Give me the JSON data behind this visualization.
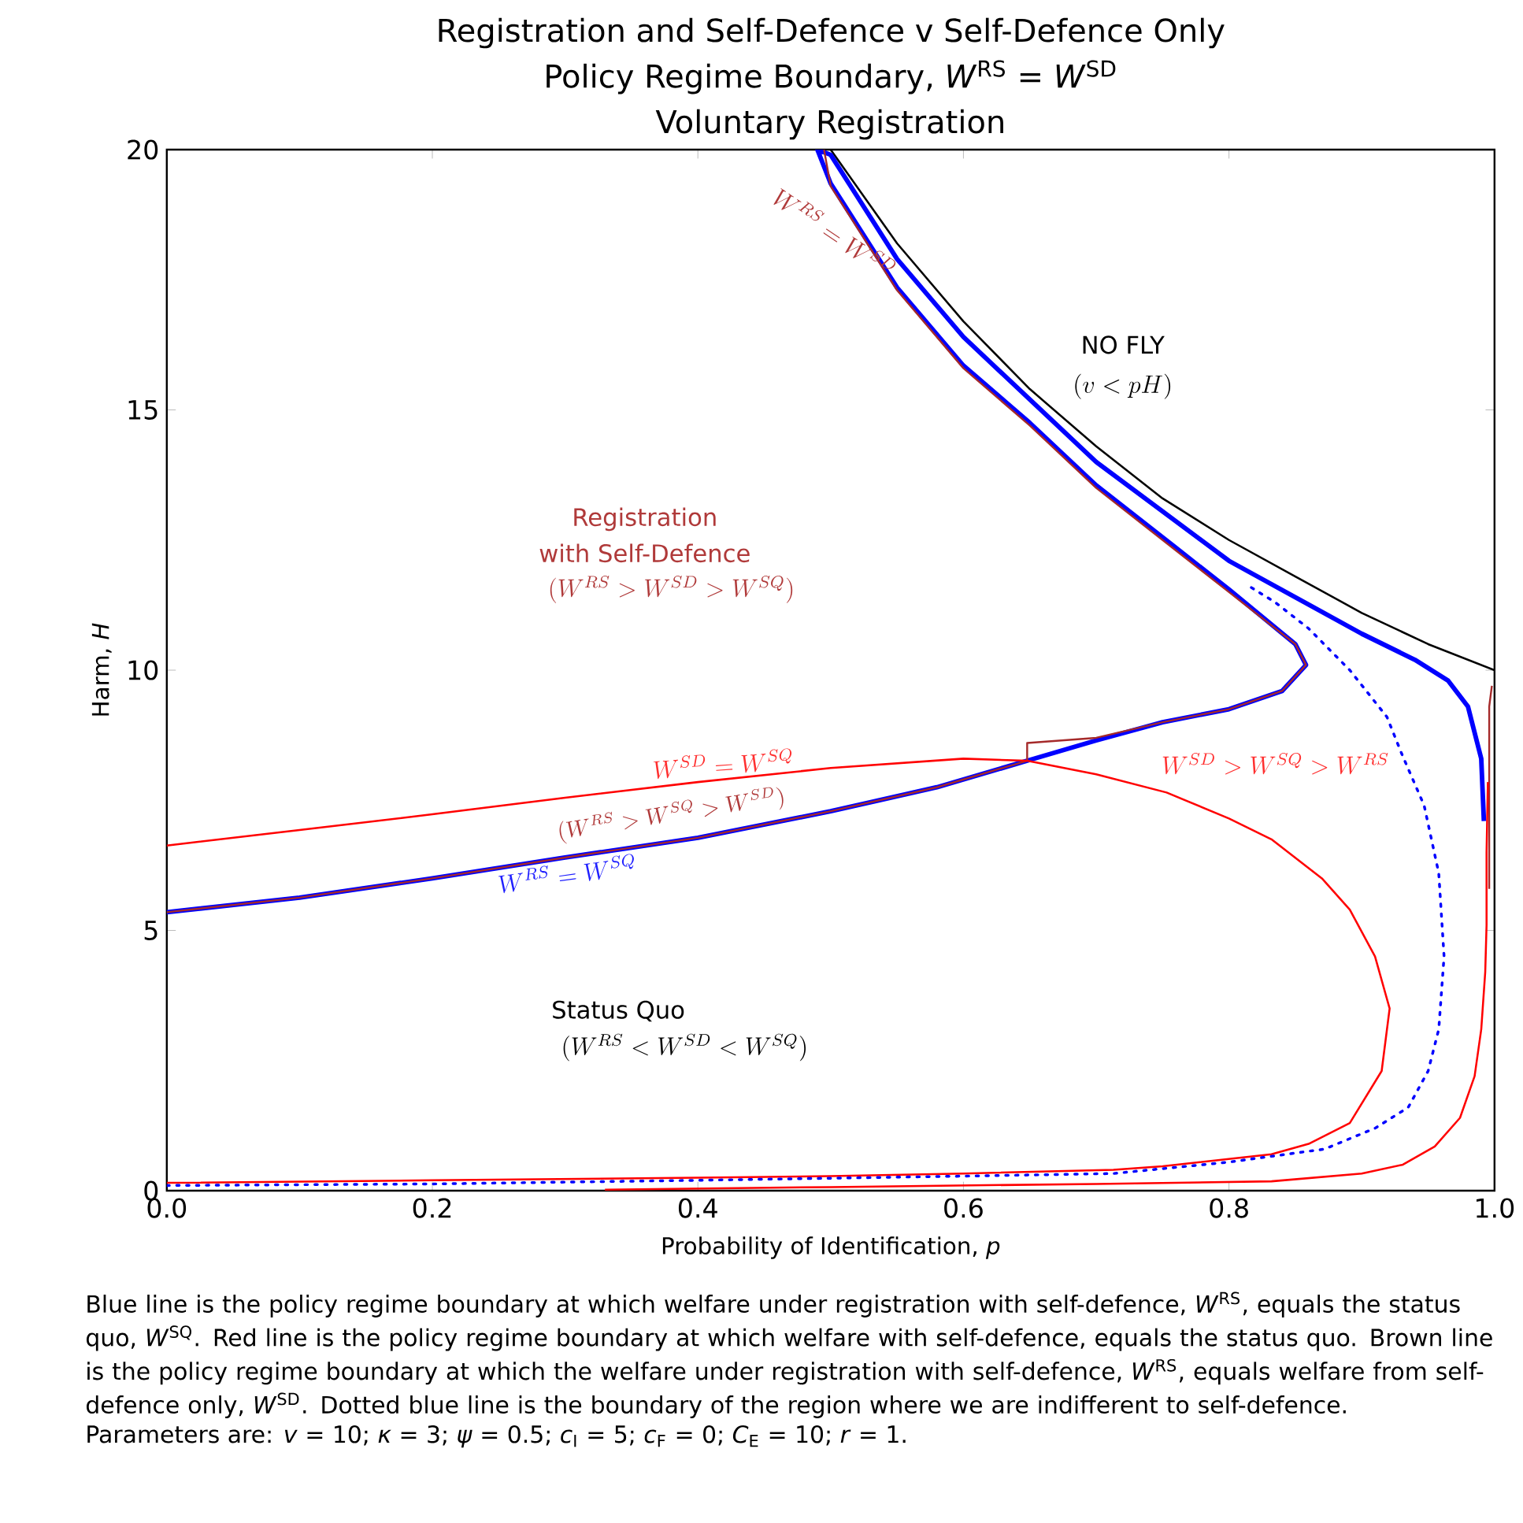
{
  "chart_data": {
    "type": "line",
    "title": "Registration and Self-Defence v Self-Defence Only",
    "subtitle": "Policy Regime Boundary, *W*$^{RS}$ = *W*$^{SD}$",
    "xlabel": "Probability of Identification, *p*",
    "ylabel": "Harm, *H*",
    "xlim": [
      0,
      1
    ],
    "ylim": [
      0,
      20
    ],
    "xticks": [
      {
        "value": 0,
        "label": "0.0"
      },
      {
        "value": 0.2,
        "label": "0.2"
      },
      {
        "value": 0.4,
        "label": "0.4"
      },
      {
        "value": 0.6,
        "label": "0.6"
      },
      {
        "value": 0.8,
        "label": "0.8"
      },
      {
        "value": 1,
        "label": "1.0"
      }
    ],
    "yticks": [
      0,
      5,
      10,
      15,
      20
    ],
    "marker": "none",
    "series": [
      {
        "color": "#000000",
        "line_style": "solid",
        "x": [
          0.5,
          0.55,
          0.6,
          0.65,
          0.7,
          0.75,
          0.8,
          0.85,
          0.9,
          0.95,
          1.0
        ],
        "values": [
          20,
          18.2,
          16.7,
          15.4,
          14.3,
          13.3,
          12.5,
          11.8,
          11.1,
          10.5,
          10
        ]
      },
      {
        "color": "#0000ff",
        "line_style": "solid",
        "x": [
          0,
          0.1,
          0.2,
          0.3,
          0.4,
          0.5,
          0.58,
          0.648,
          0.7,
          0.75,
          0.8,
          0.84,
          0.858,
          0.85,
          0.8,
          0.76,
          0.7,
          0.65,
          0.6,
          0.55,
          0.5,
          0.49,
          0.5,
          0.55,
          0.6,
          0.7,
          0.8,
          0.9,
          0.94,
          0.965,
          0.98,
          0.99,
          0.992
        ],
        "values": [
          5.35,
          5.63,
          6.0,
          6.4,
          6.78,
          7.29,
          7.75,
          8.26,
          8.65,
          9.0,
          9.25,
          9.6,
          10.1,
          10.5,
          11.55,
          12.35,
          13.55,
          14.75,
          15.85,
          17.35,
          19.35,
          20,
          19.9,
          17.9,
          16.4,
          14.0,
          12.1,
          10.7,
          10.2,
          9.8,
          9.3,
          8.3,
          7.1
        ]
      },
      {
        "color": "#a52a2a",
        "line_style": "solid",
        "x": [
          0,
          0.1,
          0.2,
          0.3,
          0.4,
          0.5,
          0.58,
          0.648,
          0.648,
          0.7,
          0.75,
          0.8,
          0.84,
          0.858,
          0.85,
          0.8,
          0.76,
          0.7,
          0.65,
          0.6,
          0.55,
          0.5,
          0.495,
          null,
          0.998,
          0.996,
          0.996
        ],
        "values": [
          5.35,
          5.63,
          6.0,
          6.4,
          6.78,
          7.29,
          7.75,
          8.26,
          8.6,
          8.7,
          9.0,
          9.25,
          9.6,
          10.1,
          10.5,
          11.5,
          12.3,
          13.5,
          14.7,
          15.8,
          17.3,
          19.3,
          20,
          null,
          9.7,
          9.3,
          5.8
        ]
      },
      {
        "color": "#ff0000",
        "line_style": "solid",
        "x": [
          0,
          0.1,
          0.2,
          0.3,
          0.4,
          0.5,
          0.6,
          0.648,
          0.7,
          0.753,
          0.8,
          0.832,
          0.87,
          0.891,
          0.91,
          0.921,
          0.915,
          0.891,
          0.86,
          0.832,
          0.75,
          0.713,
          0.6,
          0.5,
          0.4,
          0.2,
          0,
          null,
          0.33,
          0.5,
          0.7,
          0.832,
          0.9,
          0.931,
          0.955,
          0.974,
          0.985,
          0.99,
          0.993,
          0.994,
          0.994,
          0.995
        ],
        "values": [
          6.63,
          6.93,
          7.23,
          7.55,
          7.85,
          8.12,
          8.3,
          8.26,
          8.0,
          7.65,
          7.15,
          6.75,
          6.0,
          5.4,
          4.5,
          3.5,
          2.3,
          1.3,
          0.9,
          0.7,
          0.47,
          0.4,
          0.33,
          0.28,
          0.25,
          0.2,
          0.15,
          null,
          0.02,
          0.07,
          0.13,
          0.18,
          0.33,
          0.5,
          0.85,
          1.4,
          2.2,
          3.1,
          4.2,
          5.1,
          6.5,
          7.85
        ]
      },
      {
        "color": "#0000ff",
        "line_style": "dotted",
        "x": [
          0,
          0.2,
          0.4,
          0.6,
          0.713,
          0.8,
          0.872,
          0.91,
          0.935,
          0.95,
          0.958,
          0.962,
          0.958,
          0.947,
          0.93,
          0.919,
          0.891,
          0.86,
          0.835,
          0.816
        ],
        "values": [
          0.1,
          0.13,
          0.2,
          0.28,
          0.33,
          0.55,
          0.8,
          1.2,
          1.6,
          2.3,
          3.1,
          4.5,
          6.1,
          7.4,
          8.4,
          9.1,
          10.0,
          10.8,
          11.3,
          11.6
        ]
      }
    ],
    "annotations": [
      "Voluntary Registration",
      "Blue line is the policy regime boundary at which welfare under registration with self-defence, *W*$^{RS}$, equals the status quo, *W*$^{SQ}$. Red line is the policy regime boundary at which welfare with self-defence, equals the status quo. Brown line is the policy regime boundary at which the welfare under registration with self-defence, *W*$^{RS}$, equals welfare from self-defence only, *W*$^{SD}$. Dotted blue line is the boundary of the region where we are indifferent to self-defence.",
      "Parameters are: *v* = 10; *κ* = 3; *ψ* = 0.5; *c*$_{I}$ = 5; *c*$_{F}$ = 0; *C*$_{E}$ = 10; *r* = 1.",
      "NO FLY",
      "(v < pH)",
      "Registration",
      "with Self-Defence",
      "(W^{RS} > W^{SD} > W^{SQ})",
      {
        "text": "W^{SD} = W^{SQ}",
        "x": 0.42,
        "y": 7.9
      },
      "(W^{RS} > W^{SQ} > W^{SD})",
      {
        "text": "W^{RS} = W^{SQ}",
        "x": 0.3,
        "y": 6.4
      },
      {
        "text": "W^{RS} = W^{SD}",
        "x": 0.55,
        "y": 17.3
      },
      "W^{SD} > W^{SQ} > W^{RS}",
      "Status Quo",
      "(W^{RS} < W^{SD} < W^{SQ})"
    ]
  }
}
